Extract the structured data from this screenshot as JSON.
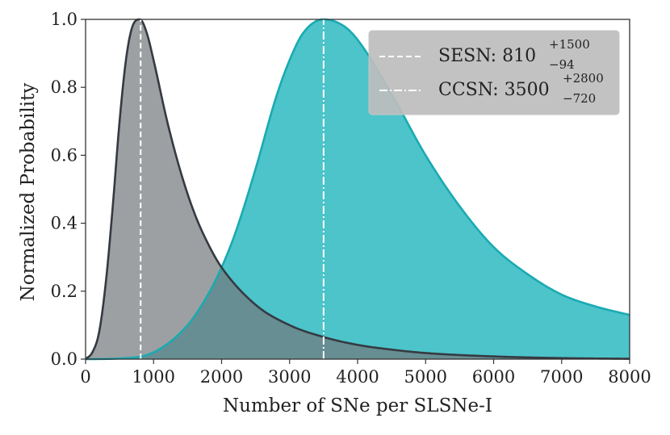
{
  "chart_data": {
    "type": "area",
    "title": "",
    "xlabel": "Number of SNe per SLSNe-I",
    "ylabel": "Normalized Probability",
    "xlim": [
      0,
      8000
    ],
    "ylim": [
      0,
      1.0
    ],
    "xticks": [
      0,
      1000,
      2000,
      3000,
      4000,
      5000,
      6000,
      7000,
      8000
    ],
    "xtick_labels": [
      "0",
      "1000",
      "2000",
      "3000",
      "4000",
      "5000",
      "6000",
      "7000",
      "8000"
    ],
    "yticks": [
      0.0,
      0.2,
      0.4,
      0.6,
      0.8,
      1.0
    ],
    "ytick_labels": [
      "0.0",
      "0.2",
      "0.4",
      "0.6",
      "0.8",
      "1.0"
    ],
    "grid": false,
    "legend_position": "top-right",
    "series": [
      {
        "name": "SESN",
        "peak": 810,
        "err_plus": "+1500",
        "err_minus": "−94",
        "fill_color": "#73777b",
        "line_color": "#353a42",
        "marker_style": "dashed",
        "x": [
          0,
          100,
          200,
          300,
          400,
          500,
          600,
          700,
          800,
          900,
          1000,
          1200,
          1400,
          1600,
          1800,
          2000,
          2500,
          3000,
          3500,
          4000,
          4500,
          5000,
          6000,
          7000,
          8000
        ],
        "values": [
          0.0,
          0.02,
          0.08,
          0.23,
          0.45,
          0.7,
          0.89,
          0.985,
          1.0,
          0.96,
          0.88,
          0.7,
          0.55,
          0.43,
          0.34,
          0.27,
          0.16,
          0.1,
          0.065,
          0.042,
          0.028,
          0.018,
          0.008,
          0.003,
          0.001
        ]
      },
      {
        "name": "CCSN",
        "peak": 3500,
        "err_plus": "+2800",
        "err_minus": "−720",
        "fill_color": "#4cc4ca",
        "line_color": "#1aaab2",
        "marker_style": "dash-dot",
        "x": [
          0,
          500,
          1000,
          1500,
          1800,
          2000,
          2200,
          2500,
          2800,
          3000,
          3200,
          3500,
          3800,
          4000,
          4500,
          5000,
          5500,
          6000,
          6500,
          7000,
          7500,
          8000
        ],
        "values": [
          0.0,
          0.002,
          0.02,
          0.1,
          0.19,
          0.27,
          0.37,
          0.56,
          0.77,
          0.88,
          0.96,
          1.0,
          0.98,
          0.94,
          0.78,
          0.6,
          0.45,
          0.33,
          0.25,
          0.19,
          0.155,
          0.13
        ]
      }
    ],
    "legend": [
      {
        "label_prefix": "SESN: ",
        "value": "810",
        "sup": "+1500",
        "sub": "−94",
        "style": "dashed"
      },
      {
        "label_prefix": "CCSN: ",
        "value": "3500",
        "sup": "+2800",
        "sub": "−720",
        "style": "dash-dot"
      }
    ]
  }
}
